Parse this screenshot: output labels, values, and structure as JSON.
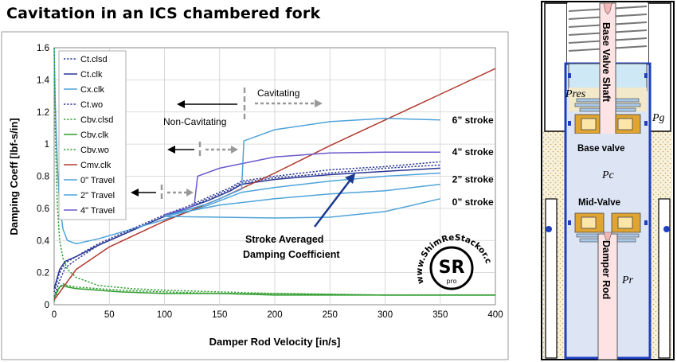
{
  "title": "Cavitation in an ICS chambered fork",
  "chart_data": {
    "type": "line",
    "xlabel": "Damper Rod Velocity [in/s]",
    "ylabel": "Damping Coeff [lbf-s/in]",
    "xlim": [
      0,
      400
    ],
    "ylim": [
      0,
      1.6
    ],
    "xticks": [
      "0",
      "50",
      "100",
      "150",
      "200",
      "250",
      "300",
      "350",
      "400"
    ],
    "yticks": [
      "0",
      "0.2",
      "0.4",
      "0.6",
      "0.8",
      "1",
      "1.2",
      "1.4",
      "1.6"
    ],
    "grid": true,
    "legend_position": "top-left",
    "series": [
      {
        "name": "Ct.clsd",
        "color": "#283593",
        "dash": "dot",
        "x": [
          0,
          5,
          10,
          20,
          40,
          60,
          80,
          100,
          120,
          140,
          160,
          170,
          200,
          250,
          300,
          350
        ],
        "y": [
          0.05,
          0.15,
          0.23,
          0.28,
          0.37,
          0.43,
          0.49,
          0.55,
          0.6,
          0.66,
          0.72,
          0.76,
          0.79,
          0.82,
          0.85,
          0.87
        ]
      },
      {
        "name": "Ct.clk",
        "color": "#283593",
        "dash": "solid",
        "x": [
          0,
          5,
          10,
          20,
          40,
          60,
          80,
          100,
          120,
          140,
          160,
          170,
          200,
          250,
          300,
          350
        ],
        "y": [
          0.1,
          0.22,
          0.27,
          0.3,
          0.37,
          0.43,
          0.49,
          0.55,
          0.6,
          0.65,
          0.71,
          0.75,
          0.78,
          0.81,
          0.83,
          0.85
        ]
      },
      {
        "name": "Cx.clk",
        "color": "#4FA3D9",
        "dash": "solid",
        "x": [
          0,
          1,
          3,
          5,
          8,
          12,
          20,
          40,
          60,
          100,
          140,
          170,
          200,
          250,
          300,
          350
        ],
        "y": [
          1.6,
          1.25,
          0.85,
          0.62,
          0.47,
          0.4,
          0.38,
          0.41,
          0.45,
          0.53,
          0.62,
          0.7,
          0.73,
          0.77,
          0.8,
          0.82
        ]
      },
      {
        "name": "Ct.wo",
        "color": "#283593",
        "dash": "dot",
        "x": [
          0,
          5,
          10,
          20,
          40,
          60,
          80,
          100,
          120,
          140,
          160,
          170,
          200,
          250,
          300,
          350
        ],
        "y": [
          0.08,
          0.2,
          0.26,
          0.3,
          0.38,
          0.44,
          0.5,
          0.56,
          0.61,
          0.67,
          0.73,
          0.77,
          0.8,
          0.84,
          0.86,
          0.89
        ]
      },
      {
        "name": "Cbv.clsd",
        "color": "#2E9D2E",
        "dash": "dot",
        "x": [
          0,
          3,
          5,
          8,
          12,
          20,
          40,
          60,
          100,
          150,
          200,
          300,
          400
        ],
        "y": [
          0.02,
          0.08,
          0.11,
          0.13,
          0.12,
          0.11,
          0.1,
          0.09,
          0.08,
          0.07,
          0.07,
          0.06,
          0.06
        ]
      },
      {
        "name": "Cbv.clk",
        "color": "#2E9D2E",
        "dash": "solid",
        "x": [
          0,
          3,
          5,
          8,
          12,
          20,
          40,
          60,
          100,
          150,
          200,
          300,
          400
        ],
        "y": [
          0.04,
          0.09,
          0.11,
          0.12,
          0.11,
          0.1,
          0.09,
          0.08,
          0.07,
          0.07,
          0.06,
          0.06,
          0.06
        ]
      },
      {
        "name": "Cbv.wo",
        "color": "#2E9D2E",
        "dash": "dot",
        "x": [
          0,
          1,
          2,
          3,
          5,
          8,
          12,
          20,
          40,
          70,
          100,
          150,
          200,
          300,
          400
        ],
        "y": [
          1.6,
          1.1,
          0.8,
          0.6,
          0.4,
          0.29,
          0.22,
          0.17,
          0.12,
          0.1,
          0.09,
          0.08,
          0.07,
          0.06,
          0.06
        ]
      },
      {
        "name": "Cmv.clk",
        "color": "#B03A2E",
        "dash": "solid",
        "x": [
          0,
          20,
          50,
          100,
          150,
          200,
          250,
          300,
          350,
          400
        ],
        "y": [
          0.03,
          0.22,
          0.36,
          0.52,
          0.66,
          0.82,
          0.99,
          1.15,
          1.31,
          1.47
        ]
      },
      {
        "name": "0\" Travel",
        "color": "#4FA3D9",
        "dash": "solid",
        "x": [
          100,
          150,
          200,
          250,
          300,
          350
        ],
        "y": [
          0.55,
          0.545,
          0.54,
          0.545,
          0.58,
          0.66
        ]
      },
      {
        "name": "2\" Travel",
        "color": "#4FA3D9",
        "dash": "solid",
        "x": [
          100,
          120,
          150,
          200,
          250,
          300,
          350
        ],
        "y": [
          0.55,
          0.58,
          0.62,
          0.66,
          0.69,
          0.71,
          0.75
        ]
      },
      {
        "name": "4\" Travel",
        "color": "#6A5ACD",
        "dash": "solid",
        "x": [
          100,
          120,
          127,
          130,
          150,
          200,
          250,
          300,
          350
        ],
        "y": [
          0.56,
          0.6,
          0.62,
          0.8,
          0.85,
          0.92,
          0.945,
          0.95,
          0.95
        ]
      }
    ],
    "extra_lines": [
      {
        "color": "#4FA3D9",
        "x": [
          100,
          140,
          170,
          172,
          200,
          250,
          300,
          350
        ],
        "y": [
          0.55,
          0.63,
          0.72,
          1.02,
          1.09,
          1.14,
          1.16,
          1.15
        ]
      }
    ],
    "stroke_labels": [
      {
        "text": "6” stroke",
        "x": 355,
        "y": 1.15
      },
      {
        "text": "4” stroke",
        "x": 355,
        "y": 0.95
      },
      {
        "text": "2” stroke",
        "x": 355,
        "y": 0.78
      },
      {
        "text": "0” stroke",
        "x": 355,
        "y": 0.64
      }
    ],
    "annotations": {
      "cavitating": "Cavitating",
      "non_cavitating": "Non-Cavitating",
      "stroke_averaged_line1": "Stroke Averaged",
      "stroke_averaged_line2": "Damping Coefficient",
      "watermark": "www.ShimReStackor.com",
      "logo": "SR",
      "logo_sub": "pro"
    }
  },
  "fork_diagram": {
    "labels": {
      "base_valve_shaft": "Base Valve Shaft",
      "pres": "Pres",
      "pg": "Pg",
      "base_valve": "Base valve",
      "pc": "Pc",
      "mid_valve": "Mid-Valve",
      "pr": "Pr",
      "damper_rod": "Damper Rod"
    }
  }
}
